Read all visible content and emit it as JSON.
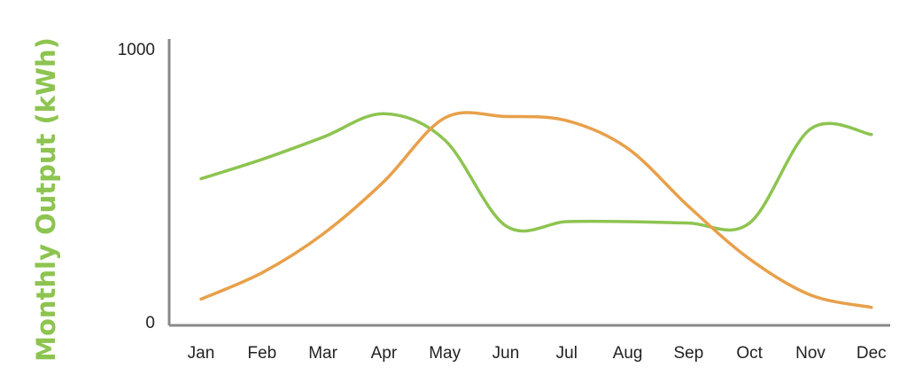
{
  "chart_data": {
    "type": "line",
    "title": "",
    "xlabel": "",
    "ylabel": "Monthly Output (kWh)",
    "ylim": [
      0,
      1000
    ],
    "yticks": [
      "0",
      "1000"
    ],
    "categories": [
      "Jan",
      "Feb",
      "Mar",
      "Apr",
      "May",
      "Jun",
      "Jul",
      "Aug",
      "Sep",
      "Oct",
      "Nov",
      "Dec"
    ],
    "series": [
      {
        "color": "#8dc450",
        "values": [
          530,
          600,
          680,
          765,
          670,
          360,
          375,
          375,
          370,
          370,
          710,
          690
        ]
      },
      {
        "color": "#e8a04a",
        "values": [
          95,
          190,
          330,
          520,
          750,
          755,
          740,
          640,
          430,
          240,
          110,
          65
        ]
      }
    ],
    "grid": false,
    "legend": "none",
    "colors": {
      "axis": "#888888",
      "ylabel": "#8dc450"
    }
  }
}
